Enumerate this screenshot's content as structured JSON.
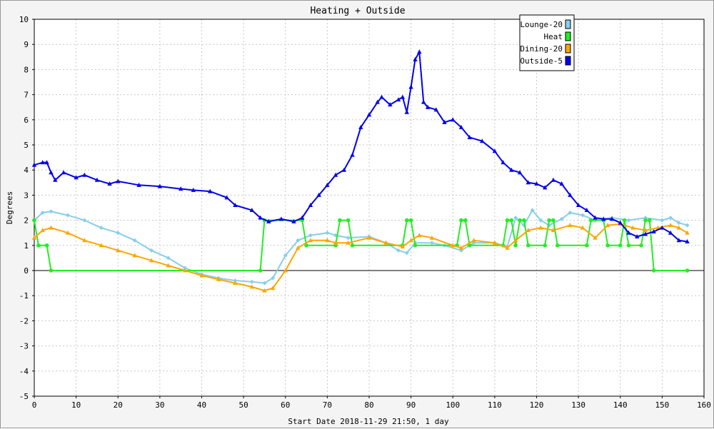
{
  "chart_data": {
    "type": "line",
    "title": "Heating + Outside",
    "xlabel": "Start Date 2018-11-29 21:50, 1 day",
    "ylabel": "Degrees",
    "xlim": [
      0,
      160
    ],
    "ylim": [
      -5,
      10
    ],
    "x_ticks": [
      0,
      10,
      20,
      30,
      40,
      50,
      60,
      70,
      80,
      90,
      100,
      110,
      120,
      130,
      140,
      150,
      160
    ],
    "y_ticks": [
      -5,
      -4,
      -3,
      -2,
      -1,
      0,
      1,
      2,
      3,
      4,
      5,
      6,
      7,
      8,
      9,
      10
    ],
    "grid": true,
    "legend_position": "top-right",
    "series": [
      {
        "name": "Lounge-20",
        "color": "#87ceeb",
        "marker": "diamond",
        "points": [
          [
            0,
            2.0
          ],
          [
            2,
            2.3
          ],
          [
            4,
            2.35
          ],
          [
            8,
            2.2
          ],
          [
            12,
            2.0
          ],
          [
            16,
            1.7
          ],
          [
            20,
            1.5
          ],
          [
            24,
            1.2
          ],
          [
            28,
            0.8
          ],
          [
            32,
            0.5
          ],
          [
            36,
            0.1
          ],
          [
            40,
            -0.15
          ],
          [
            44,
            -0.3
          ],
          [
            48,
            -0.4
          ],
          [
            52,
            -0.45
          ],
          [
            55,
            -0.5
          ],
          [
            57,
            -0.3
          ],
          [
            60,
            0.6
          ],
          [
            63,
            1.2
          ],
          [
            66,
            1.4
          ],
          [
            70,
            1.5
          ],
          [
            72,
            1.4
          ],
          [
            75,
            1.3
          ],
          [
            80,
            1.35
          ],
          [
            84,
            1.1
          ],
          [
            87,
            0.8
          ],
          [
            89,
            0.7
          ],
          [
            91,
            1.1
          ],
          [
            95,
            1.1
          ],
          [
            98,
            1.0
          ],
          [
            102,
            0.8
          ],
          [
            105,
            1.1
          ],
          [
            110,
            1.1
          ],
          [
            113,
            0.95
          ],
          [
            115,
            2.1
          ],
          [
            117,
            1.8
          ],
          [
            119,
            2.4
          ],
          [
            121,
            2.0
          ],
          [
            123,
            1.8
          ],
          [
            126,
            2.05
          ],
          [
            128,
            2.3
          ],
          [
            131,
            2.2
          ],
          [
            134,
            2.0
          ],
          [
            138,
            2.1
          ],
          [
            142,
            2.0
          ],
          [
            146,
            2.1
          ],
          [
            150,
            2.0
          ],
          [
            152,
            2.1
          ],
          [
            154,
            1.9
          ],
          [
            156,
            1.8
          ]
        ]
      },
      {
        "name": "Heat",
        "color": "#22ee22",
        "marker": "circle",
        "points": [
          [
            0,
            2.0
          ],
          [
            1,
            1.0
          ],
          [
            3,
            1.0
          ],
          [
            4,
            0.0
          ],
          [
            54,
            0.0
          ],
          [
            55,
            2.0
          ],
          [
            64,
            2.0
          ],
          [
            65,
            1.0
          ],
          [
            72,
            1.0
          ],
          [
            73,
            2.0
          ],
          [
            75,
            2.0
          ],
          [
            76,
            1.0
          ],
          [
            88,
            1.0
          ],
          [
            89,
            2.0
          ],
          [
            90,
            2.0
          ],
          [
            91,
            1.0
          ],
          [
            101,
            1.0
          ],
          [
            102,
            2.0
          ],
          [
            103,
            2.0
          ],
          [
            104,
            1.0
          ],
          [
            112,
            1.0
          ],
          [
            113,
            2.0
          ],
          [
            114,
            2.0
          ],
          [
            115,
            1.0
          ],
          [
            116,
            2.0
          ],
          [
            117,
            2.0
          ],
          [
            118,
            1.0
          ],
          [
            122,
            1.0
          ],
          [
            123,
            2.0
          ],
          [
            124,
            2.0
          ],
          [
            125,
            1.0
          ],
          [
            132,
            1.0
          ],
          [
            133,
            2.0
          ],
          [
            136,
            2.0
          ],
          [
            137,
            1.0
          ],
          [
            140,
            1.0
          ],
          [
            141,
            2.0
          ],
          [
            142,
            1.0
          ],
          [
            145,
            1.0
          ],
          [
            146,
            2.0
          ],
          [
            147,
            2.0
          ],
          [
            148,
            0.0
          ],
          [
            156,
            0.0
          ]
        ]
      },
      {
        "name": "Dining-20",
        "color": "#ffa500",
        "marker": "triangle",
        "points": [
          [
            0,
            1.3
          ],
          [
            2,
            1.6
          ],
          [
            4,
            1.7
          ],
          [
            8,
            1.5
          ],
          [
            12,
            1.2
          ],
          [
            16,
            1.0
          ],
          [
            20,
            0.8
          ],
          [
            24,
            0.6
          ],
          [
            28,
            0.4
          ],
          [
            32,
            0.2
          ],
          [
            36,
            0.0
          ],
          [
            40,
            -0.2
          ],
          [
            44,
            -0.35
          ],
          [
            48,
            -0.5
          ],
          [
            52,
            -0.65
          ],
          [
            55,
            -0.8
          ],
          [
            57,
            -0.7
          ],
          [
            60,
            0.0
          ],
          [
            63,
            0.9
          ],
          [
            66,
            1.2
          ],
          [
            70,
            1.2
          ],
          [
            72,
            1.1
          ],
          [
            75,
            1.1
          ],
          [
            80,
            1.3
          ],
          [
            84,
            1.1
          ],
          [
            88,
            0.95
          ],
          [
            90,
            1.2
          ],
          [
            92,
            1.4
          ],
          [
            95,
            1.3
          ],
          [
            100,
            1.0
          ],
          [
            102,
            0.9
          ],
          [
            105,
            1.2
          ],
          [
            110,
            1.1
          ],
          [
            113,
            0.9
          ],
          [
            115,
            1.2
          ],
          [
            118,
            1.6
          ],
          [
            121,
            1.7
          ],
          [
            124,
            1.6
          ],
          [
            128,
            1.8
          ],
          [
            131,
            1.7
          ],
          [
            134,
            1.3
          ],
          [
            137,
            1.8
          ],
          [
            140,
            1.85
          ],
          [
            143,
            1.7
          ],
          [
            146,
            1.6
          ],
          [
            149,
            1.7
          ],
          [
            152,
            1.8
          ],
          [
            154,
            1.7
          ],
          [
            156,
            1.5
          ]
        ]
      },
      {
        "name": "Outside-5",
        "color": "#0000ee",
        "marker": "triangle",
        "points": [
          [
            0,
            4.2
          ],
          [
            2,
            4.3
          ],
          [
            3,
            4.3
          ],
          [
            4,
            3.9
          ],
          [
            5,
            3.6
          ],
          [
            7,
            3.9
          ],
          [
            10,
            3.7
          ],
          [
            12,
            3.8
          ],
          [
            15,
            3.6
          ],
          [
            18,
            3.45
          ],
          [
            20,
            3.55
          ],
          [
            25,
            3.4
          ],
          [
            30,
            3.35
          ],
          [
            35,
            3.25
          ],
          [
            38,
            3.2
          ],
          [
            42,
            3.15
          ],
          [
            46,
            2.9
          ],
          [
            48,
            2.6
          ],
          [
            52,
            2.4
          ],
          [
            54,
            2.1
          ],
          [
            56,
            1.95
          ],
          [
            59,
            2.05
          ],
          [
            62,
            1.95
          ],
          [
            64,
            2.1
          ],
          [
            66,
            2.6
          ],
          [
            68,
            3.0
          ],
          [
            70,
            3.4
          ],
          [
            72,
            3.8
          ],
          [
            74,
            4.0
          ],
          [
            76,
            4.6
          ],
          [
            78,
            5.7
          ],
          [
            80,
            6.2
          ],
          [
            82,
            6.7
          ],
          [
            83,
            6.9
          ],
          [
            85,
            6.6
          ],
          [
            87,
            6.8
          ],
          [
            88,
            6.9
          ],
          [
            89,
            6.3
          ],
          [
            90,
            7.3
          ],
          [
            91,
            8.4
          ],
          [
            92,
            8.7
          ],
          [
            93,
            6.7
          ],
          [
            94,
            6.5
          ],
          [
            96,
            6.4
          ],
          [
            98,
            5.9
          ],
          [
            100,
            6.0
          ],
          [
            102,
            5.7
          ],
          [
            104,
            5.3
          ],
          [
            107,
            5.15
          ],
          [
            110,
            4.75
          ],
          [
            112,
            4.3
          ],
          [
            114,
            4.0
          ],
          [
            116,
            3.9
          ],
          [
            118,
            3.5
          ],
          [
            120,
            3.45
          ],
          [
            122,
            3.3
          ],
          [
            124,
            3.6
          ],
          [
            126,
            3.45
          ],
          [
            128,
            3.0
          ],
          [
            130,
            2.6
          ],
          [
            132,
            2.4
          ],
          [
            134,
            2.1
          ],
          [
            136,
            2.05
          ],
          [
            138,
            2.05
          ],
          [
            140,
            1.9
          ],
          [
            142,
            1.5
          ],
          [
            144,
            1.35
          ],
          [
            146,
            1.45
          ],
          [
            148,
            1.55
          ],
          [
            150,
            1.7
          ],
          [
            152,
            1.5
          ],
          [
            154,
            1.2
          ],
          [
            156,
            1.15
          ]
        ]
      }
    ]
  }
}
